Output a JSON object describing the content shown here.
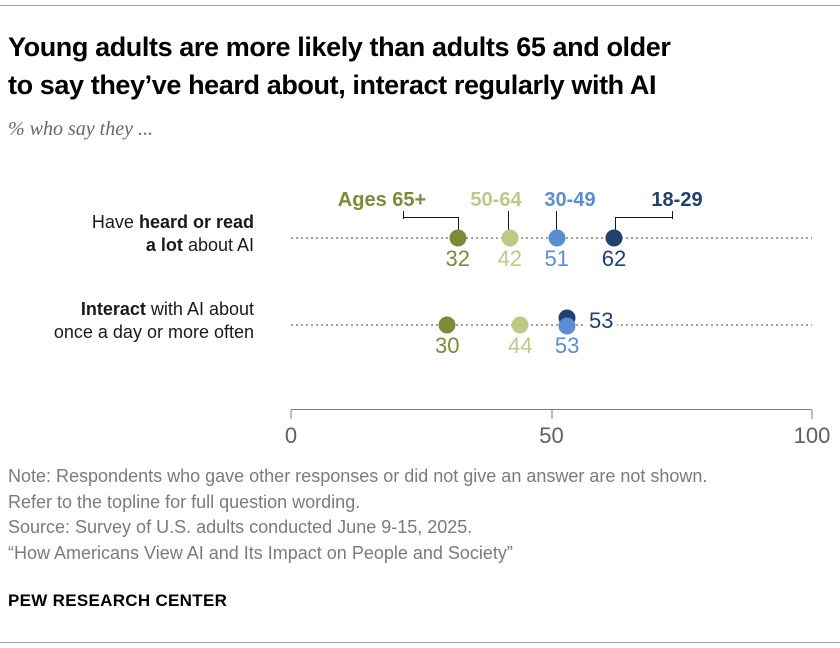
{
  "header": {
    "title_line1": "Young adults are more likely than adults 65 and older",
    "title_line2": "to say they’ve heard about, interact regularly with AI",
    "subtitle": "% who say they ..."
  },
  "rows": [
    {
      "label": {
        "pre": "Have ",
        "bold1": "heard or read",
        "bold2": "a lot",
        "post": " about AI"
      }
    },
    {
      "label": {
        "bold1": "Interact",
        "post1": " with AI about",
        "line2": "once a day or more often"
      }
    }
  ],
  "notes": {
    "line1": "Note: Respondents who gave other responses or did not give an answer are not shown.",
    "line2": "Refer to the topline for full question wording.",
    "line3": "Source: Survey of U.S. adults conducted June 9-15, 2025.",
    "line4": "“How Americans View AI and Its Impact on People and Society”"
  },
  "brand": "PEW RESEARCH CENTER",
  "chart_data": {
    "type": "scatter",
    "subtype": "dot-plot",
    "title": "Young adults are more likely than adults 65 and older to say they’ve heard about, interact regularly with AI",
    "subtitle": "% who say they ...",
    "categories": [
      "Have heard or read a lot about AI",
      "Interact with AI about once a day or more often"
    ],
    "series": [
      {
        "name": "Ages 65+",
        "color": "#7d8a38",
        "values": [
          32,
          30
        ]
      },
      {
        "name": "50-64",
        "color": "#c0c888",
        "values": [
          42,
          44
        ]
      },
      {
        "name": "30-49",
        "color": "#5b8dd1",
        "values": [
          51,
          53
        ]
      },
      {
        "name": "18-29",
        "color": "#21406e",
        "values": [
          62,
          53
        ]
      }
    ],
    "xlim": [
      0,
      100
    ],
    "x_ticks": [
      0,
      50,
      100
    ],
    "grid": "dotted-row-lines",
    "legend_position": "top-inline",
    "axis_color": "#7f7f7f"
  }
}
